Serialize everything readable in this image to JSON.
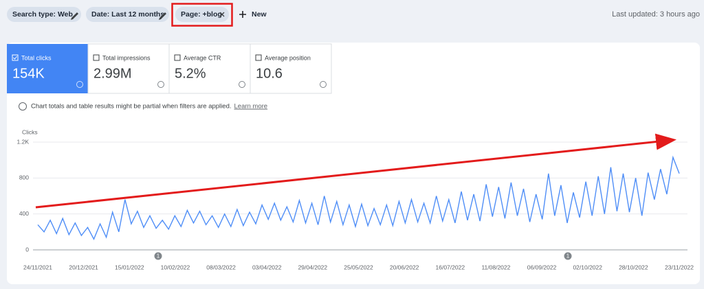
{
  "filters": [
    {
      "label": "Search type: Web"
    },
    {
      "label": "Date: Last 12 months"
    },
    {
      "label": "Page: +blog"
    }
  ],
  "new_button": "New",
  "last_updated": "Last updated: 3 hours ago",
  "metrics": [
    {
      "label": "Total clicks",
      "value": "154K"
    },
    {
      "label": "Total impressions",
      "value": "2.99M"
    },
    {
      "label": "Average CTR",
      "value": "5.2%"
    },
    {
      "label": "Average position",
      "value": "10.6"
    }
  ],
  "notice": "Chart totals and table results might be partial when filters are applied.",
  "learn_more": "Learn more",
  "chart_data": {
    "type": "line",
    "y_label": "Clicks",
    "color": "#4f8ef7",
    "annotations": [
      {
        "label": "1"
      },
      {
        "label": "1"
      }
    ],
    "ylim": [
      0,
      1200
    ],
    "yticks": [
      0,
      400,
      800,
      {
        "value": 1200,
        "label": "1.2K"
      }
    ],
    "grid": true,
    "xticks": [
      "24/11/2021",
      "20/12/2021",
      "15/01/2022",
      "10/02/2022",
      "08/03/2022",
      "03/04/2022",
      "29/04/2022",
      "25/05/2022",
      "20/06/2022",
      "16/07/2022",
      "11/08/2022",
      "06/09/2022",
      "02/10/2022",
      "28/10/2022",
      "23/11/2022"
    ],
    "values": [
      280,
      200,
      330,
      180,
      350,
      170,
      300,
      160,
      250,
      120,
      290,
      140,
      420,
      200,
      560,
      290,
      430,
      250,
      380,
      240,
      330,
      230,
      380,
      260,
      440,
      300,
      430,
      280,
      380,
      250,
      400,
      260,
      450,
      270,
      420,
      290,
      500,
      340,
      520,
      330,
      480,
      310,
      550,
      300,
      520,
      280,
      600,
      310,
      540,
      280,
      500,
      260,
      510,
      270,
      460,
      280,
      500,
      270,
      540,
      300,
      560,
      310,
      520,
      300,
      600,
      320,
      560,
      300,
      650,
      330,
      620,
      320,
      730,
      370,
      700,
      350,
      750,
      380,
      680,
      310,
      620,
      340,
      850,
      380,
      720,
      300,
      640,
      360,
      760,
      380,
      820,
      400,
      920,
      430,
      850,
      420,
      800,
      380,
      860,
      560,
      900,
      620,
      1030,
      850
    ]
  }
}
